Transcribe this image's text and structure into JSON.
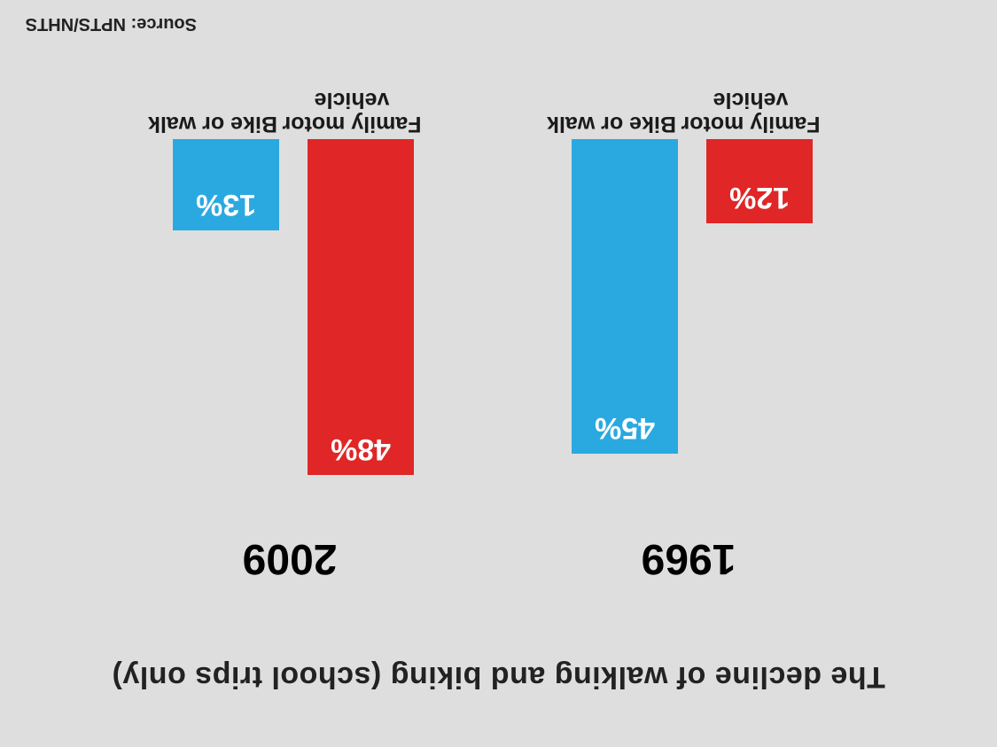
{
  "chart_data": {
    "type": "bar",
    "title": "The decline of walking and biking (school trips only)",
    "groups": [
      "1969",
      "2009"
    ],
    "series": [
      {
        "name": "Bike or walk",
        "values": [
          45,
          13
        ],
        "color": "#2aa9e0"
      },
      {
        "name": "Family motor vehicle",
        "values": [
          12,
          48
        ],
        "color": "#e02626"
      }
    ],
    "value_suffix": "%",
    "source": "Source: NPTS/NHTS"
  },
  "colors": {
    "background": "#dedede",
    "accent_blue": "#2aa9e0",
    "accent_red": "#e02626"
  }
}
